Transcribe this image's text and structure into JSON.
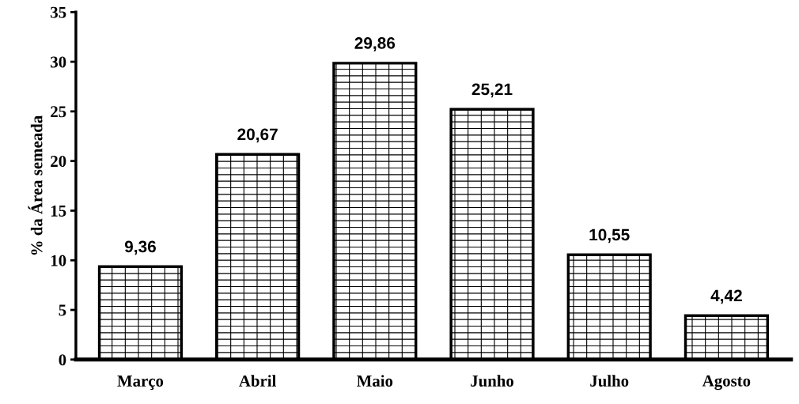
{
  "chart_data": {
    "type": "bar",
    "ylabel": "% da Área semeada",
    "categories": [
      "Março",
      "Abril",
      "Maio",
      "Junho",
      "Julho",
      "Agosto"
    ],
    "values": [
      9.36,
      20.67,
      29.86,
      25.21,
      10.55,
      4.42
    ],
    "value_labels": [
      "9,36",
      "20,67",
      "29,86",
      "25,21",
      "10,55",
      "4,42"
    ],
    "color": "#000000",
    "ylim": [
      0,
      35
    ],
    "yticks": [
      0,
      5,
      10,
      15,
      20,
      25,
      30,
      35
    ],
    "grid": false,
    "legend": false
  }
}
